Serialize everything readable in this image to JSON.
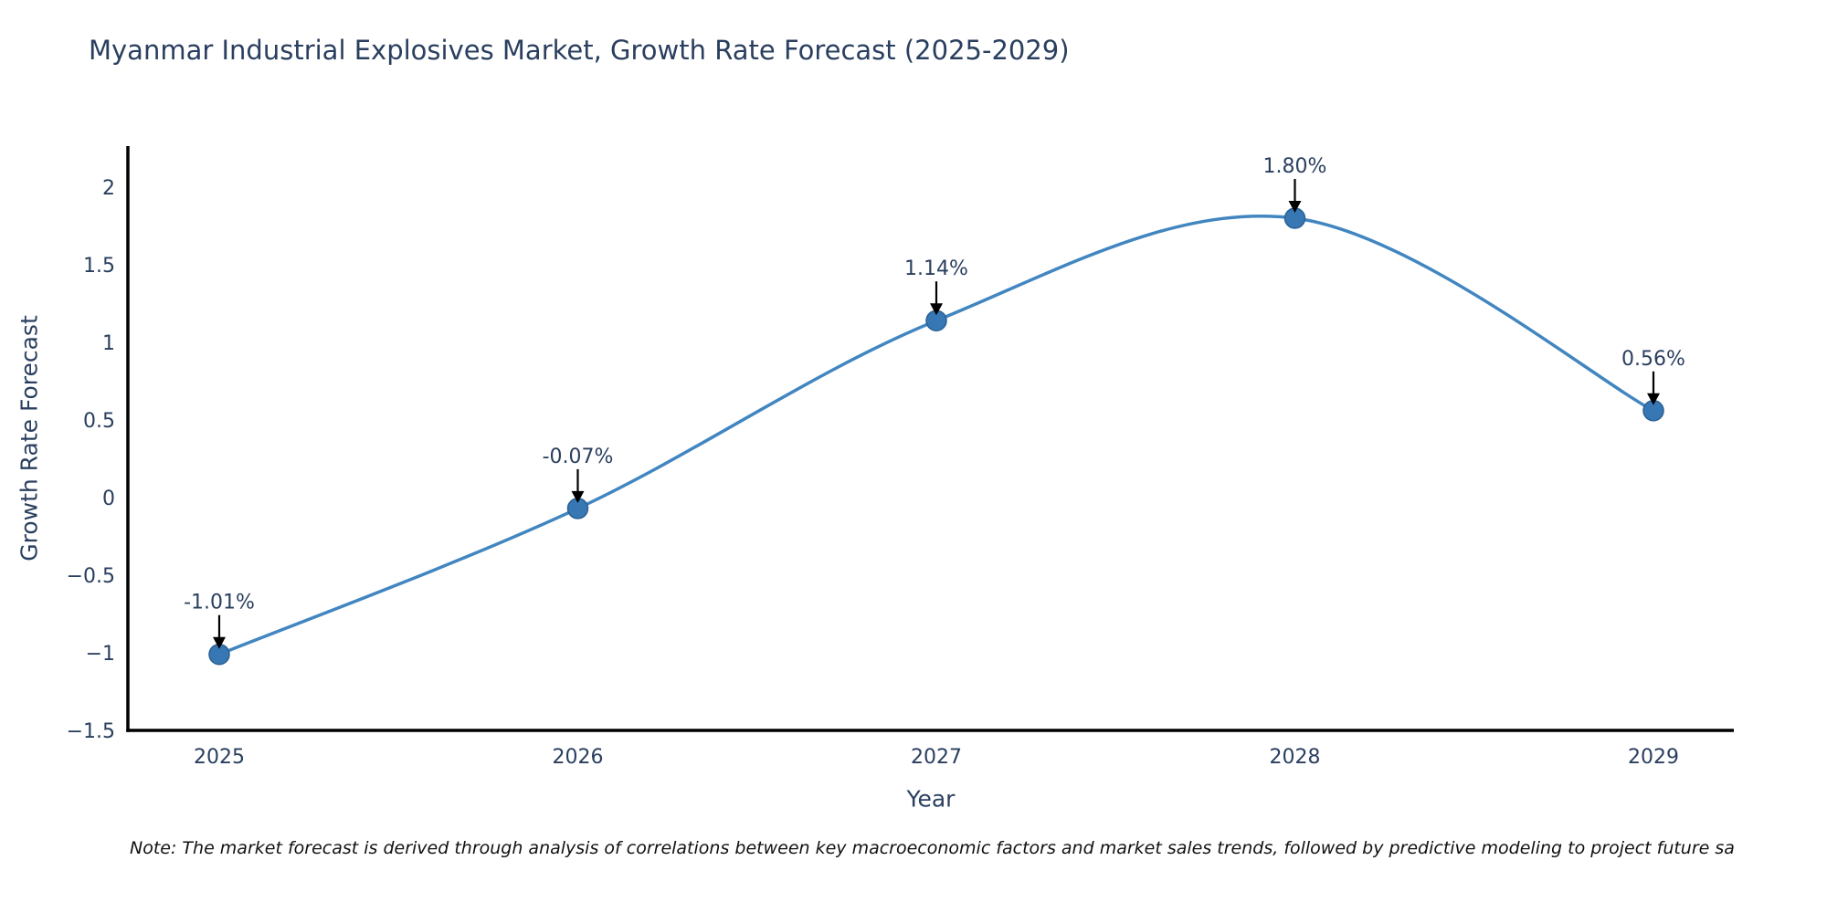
{
  "title": "Myanmar Industrial Explosives Market, Growth Rate Forecast (2025-2029)",
  "note": "Note: The market forecast is derived through analysis of correlations between key macroeconomic factors and market sales trends, followed by predictive modeling to project future sa",
  "chart_data": {
    "type": "line",
    "title": "Myanmar Industrial Explosives Market, Growth Rate Forecast (2025-2029)",
    "xlabel": "Year",
    "ylabel": "Growth Rate Forecast",
    "categories": [
      "2025",
      "2026",
      "2027",
      "2028",
      "2029"
    ],
    "series": [
      {
        "name": "Growth Rate Forecast",
        "values": [
          -1.01,
          -0.07,
          1.14,
          1.8,
          0.56
        ]
      }
    ],
    "point_labels": [
      "-1.01%",
      "-0.07%",
      "1.14%",
      "1.80%",
      "0.56%"
    ],
    "yticks": [
      2,
      1.5,
      1,
      0.5,
      0,
      -0.5,
      -1,
      -1.5
    ],
    "ylim": [
      -1.5,
      2.26
    ],
    "line_shape": "spline",
    "grid": false,
    "legend_position": "none",
    "markers": true,
    "annotation_arrows": true,
    "colors": {
      "line": "#4186c0",
      "marker_fill": "#3777b3",
      "marker_border": "#2b6094",
      "arrow": "#000000",
      "annotation_text": "#2a3f5f",
      "tick_text": "#2a3f5f",
      "axis_line": "#000000",
      "title_text": "#2a3f5f",
      "background": "#ffffff"
    }
  }
}
